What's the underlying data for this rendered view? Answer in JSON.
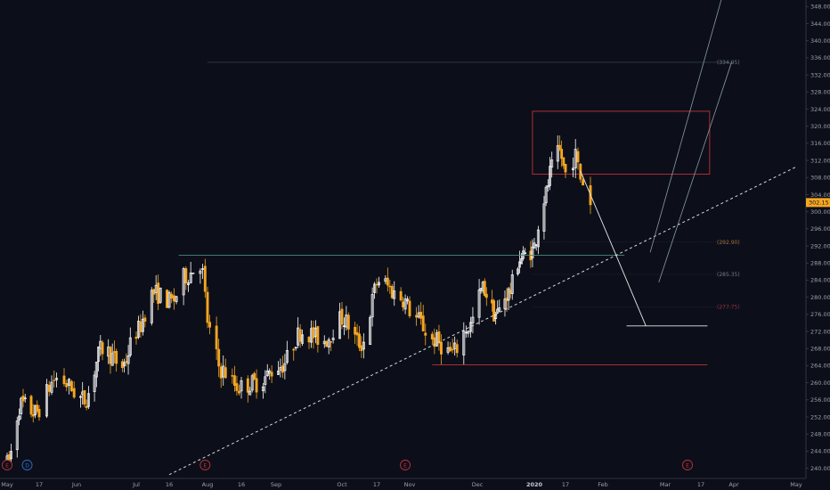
{
  "chart_data": {
    "type": "candlestick",
    "y_axis": {
      "ylim": [
        238,
        349
      ],
      "tick_labels": [
        "240.00",
        "244.00",
        "248.00",
        "252.00",
        "256.00",
        "260.00",
        "264.00",
        "268.00",
        "272.00",
        "276.00",
        "280.00",
        "284.00",
        "288.00",
        "292.00",
        "296.00",
        "300.00",
        "304.00",
        "308.00",
        "312.00",
        "316.00",
        "320.00",
        "324.00",
        "328.00",
        "332.00",
        "336.00",
        "340.00",
        "344.00",
        "348.00"
      ],
      "tick_values": [
        240,
        244,
        248,
        252,
        256,
        260,
        264,
        268,
        272,
        276,
        280,
        284,
        288,
        292,
        296,
        300,
        304,
        308,
        312,
        316,
        320,
        324,
        328,
        332,
        336,
        340,
        344,
        348
      ]
    },
    "x_axis": {
      "labels": [
        "May",
        "17",
        "Jun",
        "Jul",
        "16",
        "Aug",
        "16",
        "Sep",
        "Oct",
        "17",
        "Nov",
        "Dec",
        "2020",
        "17",
        "Feb",
        "Mar",
        "17",
        "Apr",
        "May"
      ],
      "dates": [
        "2019-05-01",
        "2019-05-17",
        "2019-06-01",
        "2019-07-01",
        "2019-07-16",
        "2019-08-01",
        "2019-08-16",
        "2019-09-01",
        "2019-10-01",
        "2019-10-17",
        "2019-11-01",
        "2019-12-01",
        "2020-01-01",
        "2020-01-17",
        "2020-02-01",
        "2020-03-01",
        "2020-03-17",
        "2020-04-01",
        "2020-05-01"
      ]
    },
    "current_price": {
      "label": "302.15",
      "value": 302.15
    },
    "price_markers": [
      {
        "label": "334.95",
        "value": 334.95
      },
      {
        "label": "292.90",
        "value": 292.9
      },
      {
        "label": "285.35",
        "value": 285.35
      },
      {
        "label": "277.75",
        "value": 277.75
      }
    ],
    "event_markers": [
      {
        "label": "E",
        "date": "2019-05-01"
      },
      {
        "label": "D",
        "date": "2019-05-11"
      },
      {
        "label": "E",
        "date": "2019-07-31"
      },
      {
        "label": "E",
        "date": "2019-10-30"
      },
      {
        "label": "E",
        "date": "2020-03-11"
      }
    ],
    "candles": [],
    "drawings": {
      "trendline": {
        "from": {
          "date": "2019-07-16",
          "value": 238.5
        },
        "to": {
          "date": "2020-05-01",
          "value": 310.5
        }
      },
      "resistance_line": {
        "from": "2019-07-20",
        "to": "2020-02-11",
        "value": 289.8
      },
      "support_line": {
        "from": "2019-11-11",
        "to": "2020-03-20",
        "value": 264.2
      },
      "target_line": {
        "from": "2020-02-12",
        "to": "2020-03-20",
        "value": 273.3
      },
      "supply_zone": {
        "from": "2019-12-31",
        "to": "2020-03-21",
        "top": 323.5,
        "bottom": 308.8
      },
      "projection_path": [
        {
          "date": "2020-01-23",
          "value": 309.5
        },
        {
          "date": "2020-02-07",
          "value": 290.0
        },
        {
          "date": "2020-02-21",
          "value": 273.3
        }
      ],
      "upper_channel": [
        {
          "date": "2020-02-23",
          "value": 290.5
        },
        {
          "date": "2020-04-01",
          "value": 360
        }
      ],
      "lower_channel": [
        {
          "date": "2020-02-27",
          "value": 283.5
        },
        {
          "date": "2020-03-31",
          "value": 335
        }
      ],
      "level_lines": [
        {
          "from": "2019-08-01",
          "to": "2020-03-31",
          "value": 334.95
        },
        {
          "from": "2019-12-31",
          "to": "2020-03-31",
          "value": 292.9
        },
        {
          "from": "2019-12-31",
          "to": "2020-03-31",
          "value": 285.35
        },
        {
          "from": "2019-12-31",
          "to": "2020-03-31",
          "value": 277.75
        }
      ]
    },
    "colors": {
      "background": "#0c0f19",
      "up_candle": "#ffffff",
      "down_candle": "#f5a623",
      "price_tag": "#f5a623",
      "zone_border": "#c0303a",
      "support_line": "#c0303a",
      "resistance_line": "#4a8a7a",
      "trendline": "#d8d8d8",
      "projection": "#e8e8e8",
      "channel": "#8a9aa8",
      "level_upper": "#a0703a",
      "level_mid": "#707780",
      "level_lower": "#903040"
    }
  }
}
